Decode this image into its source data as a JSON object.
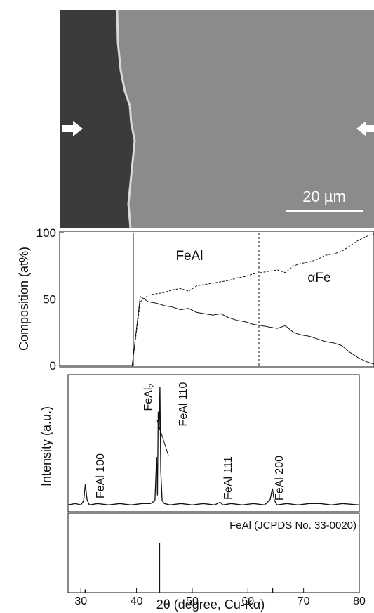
{
  "image": {
    "scale_bar": "20 µm"
  },
  "chart_data": [
    {
      "type": "line",
      "ylabel": "Composition (at%)",
      "ylim": [
        0,
        100
      ],
      "yticks": [
        0,
        50,
        100
      ],
      "annotations": [
        "FeAl",
        "αFe"
      ],
      "categories": [
        null,
        null,
        null,
        null,
        null,
        null,
        null,
        null,
        null,
        null,
        null,
        null,
        null,
        null,
        null,
        null,
        null,
        null,
        null,
        null,
        null,
        null,
        null,
        null,
        null,
        null,
        null,
        null,
        null,
        null,
        null,
        null,
        null,
        null,
        null,
        null,
        null,
        null,
        null,
        null
      ],
      "series": [
        {
          "color": "#111111",
          "style": "solid",
          "values": [
            0,
            0,
            0,
            0,
            0,
            0,
            0,
            0,
            0,
            0,
            52,
            48,
            47,
            45,
            44,
            42,
            43,
            40,
            39,
            38,
            39,
            36,
            34,
            33,
            31,
            30,
            29,
            28,
            30,
            25,
            23,
            22,
            20,
            18,
            17,
            15,
            10,
            6,
            3,
            1
          ]
        },
        {
          "color": "#111111",
          "style": "dashed",
          "values": [
            0,
            0,
            0,
            0,
            0,
            0,
            0,
            0,
            0,
            0,
            48,
            53,
            54,
            55,
            57,
            58,
            56,
            60,
            61,
            62,
            63,
            64,
            66,
            67,
            69,
            70,
            71,
            72,
            70,
            75,
            77,
            78,
            80,
            83,
            84,
            86,
            90,
            94,
            97,
            99
          ]
        }
      ]
    },
    {
      "type": "line",
      "ylabel": "Intensity (a.u.)",
      "xlim": [
        27.7,
        80
      ],
      "ylim": [
        0,
        100
      ],
      "annotations": [
        {
          "text": "FeAl 100"
        },
        {
          "text": "FeAl",
          "subscript": "2"
        },
        {
          "text": "FeAl 110"
        },
        {
          "text": "FeAl 111"
        },
        {
          "text": "FeAl 200"
        }
      ],
      "x": [
        27.7,
        29,
        30,
        30.5,
        30.8,
        31.1,
        31.5,
        33,
        35,
        37,
        39,
        41,
        42.5,
        43.3,
        43.6,
        43.75,
        43.9,
        44.05,
        44.2,
        44.35,
        44.6,
        45,
        46,
        48,
        50,
        52,
        54,
        55,
        55.5,
        57,
        59,
        61,
        63,
        64,
        64.4,
        64.7,
        65.2,
        67,
        69,
        71,
        73,
        75,
        77,
        80
      ],
      "series": [
        {
          "color": "#111111",
          "values": [
            5,
            6,
            5,
            8,
            20,
            9,
            5,
            6,
            5,
            6,
            5,
            6,
            6,
            8,
            40,
            12,
            73,
            60,
            91,
            30,
            8,
            6,
            5,
            6,
            5,
            6,
            5,
            7,
            5,
            6,
            5,
            6,
            5,
            9,
            17,
            9,
            5,
            6,
            5,
            6,
            6,
            5,
            6,
            5
          ]
        }
      ]
    },
    {
      "type": "bar",
      "title": "FeAl (JCPDS No. 33-0020)",
      "xlabel": "2θ (degree, Cu-Kα)",
      "xlim": [
        27.7,
        80
      ],
      "ylim": [
        0,
        100
      ],
      "xticks": [
        30,
        40,
        50,
        60,
        70,
        80
      ],
      "x": [
        30.8,
        44.1,
        64.4
      ],
      "values": [
        4,
        62,
        6
      ],
      "color": "#111111"
    }
  ]
}
